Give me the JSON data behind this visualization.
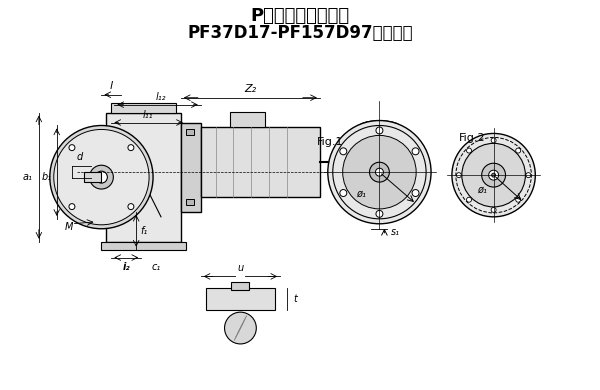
{
  "title_line1": "P系列外形安装尺寸",
  "title_line2": "PF37D17-PF157D97法兰安装",
  "bg_color": "#ffffff",
  "line_color": "#000000",
  "gray_color": "#888888",
  "light_gray": "#cccccc",
  "fig1_label": "Fig.1",
  "fig2_label": "Fig.2"
}
